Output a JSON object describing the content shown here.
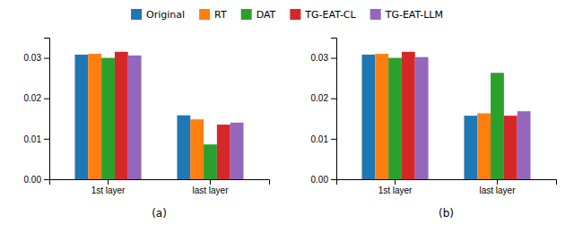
{
  "chart_data": [
    {
      "type": "bar",
      "categories": [
        "1st layer",
        "last layer"
      ],
      "series": [
        {
          "name": "Original",
          "values": [
            0.0308,
            0.0158
          ]
        },
        {
          "name": "RT",
          "values": [
            0.031,
            0.0148
          ]
        },
        {
          "name": "DAT",
          "values": [
            0.03,
            0.0086
          ]
        },
        {
          "name": "TG-EAT-CL",
          "values": [
            0.0315,
            0.0135
          ]
        },
        {
          "name": "TG-EAT-LLM",
          "values": [
            0.0306,
            0.014
          ]
        }
      ],
      "ylim": [
        0.0,
        0.035
      ],
      "yticks": [
        {
          "value": 0,
          "label": "0.00"
        },
        0.01,
        0.02,
        0.03
      ],
      "x_label": "(a)",
      "legend": "top"
    },
    {
      "type": "bar",
      "categories": [
        "1st layer",
        "last layer"
      ],
      "series": [
        {
          "name": "Original",
          "values": [
            0.0308,
            0.0157
          ]
        },
        {
          "name": "RT",
          "values": [
            0.031,
            0.0163
          ]
        },
        {
          "name": "DAT",
          "values": [
            0.03,
            0.0263
          ]
        },
        {
          "name": "TG-EAT-CL",
          "values": [
            0.0315,
            0.0157
          ]
        },
        {
          "name": "TG-EAT-LLM",
          "values": [
            0.0302,
            0.0168
          ]
        }
      ],
      "ylim": [
        0.0,
        0.035
      ],
      "yticks": [
        {
          "value": 0,
          "label": "0.00"
        },
        0.01,
        0.02,
        0.03
      ],
      "x_label": "(b)"
    }
  ]
}
